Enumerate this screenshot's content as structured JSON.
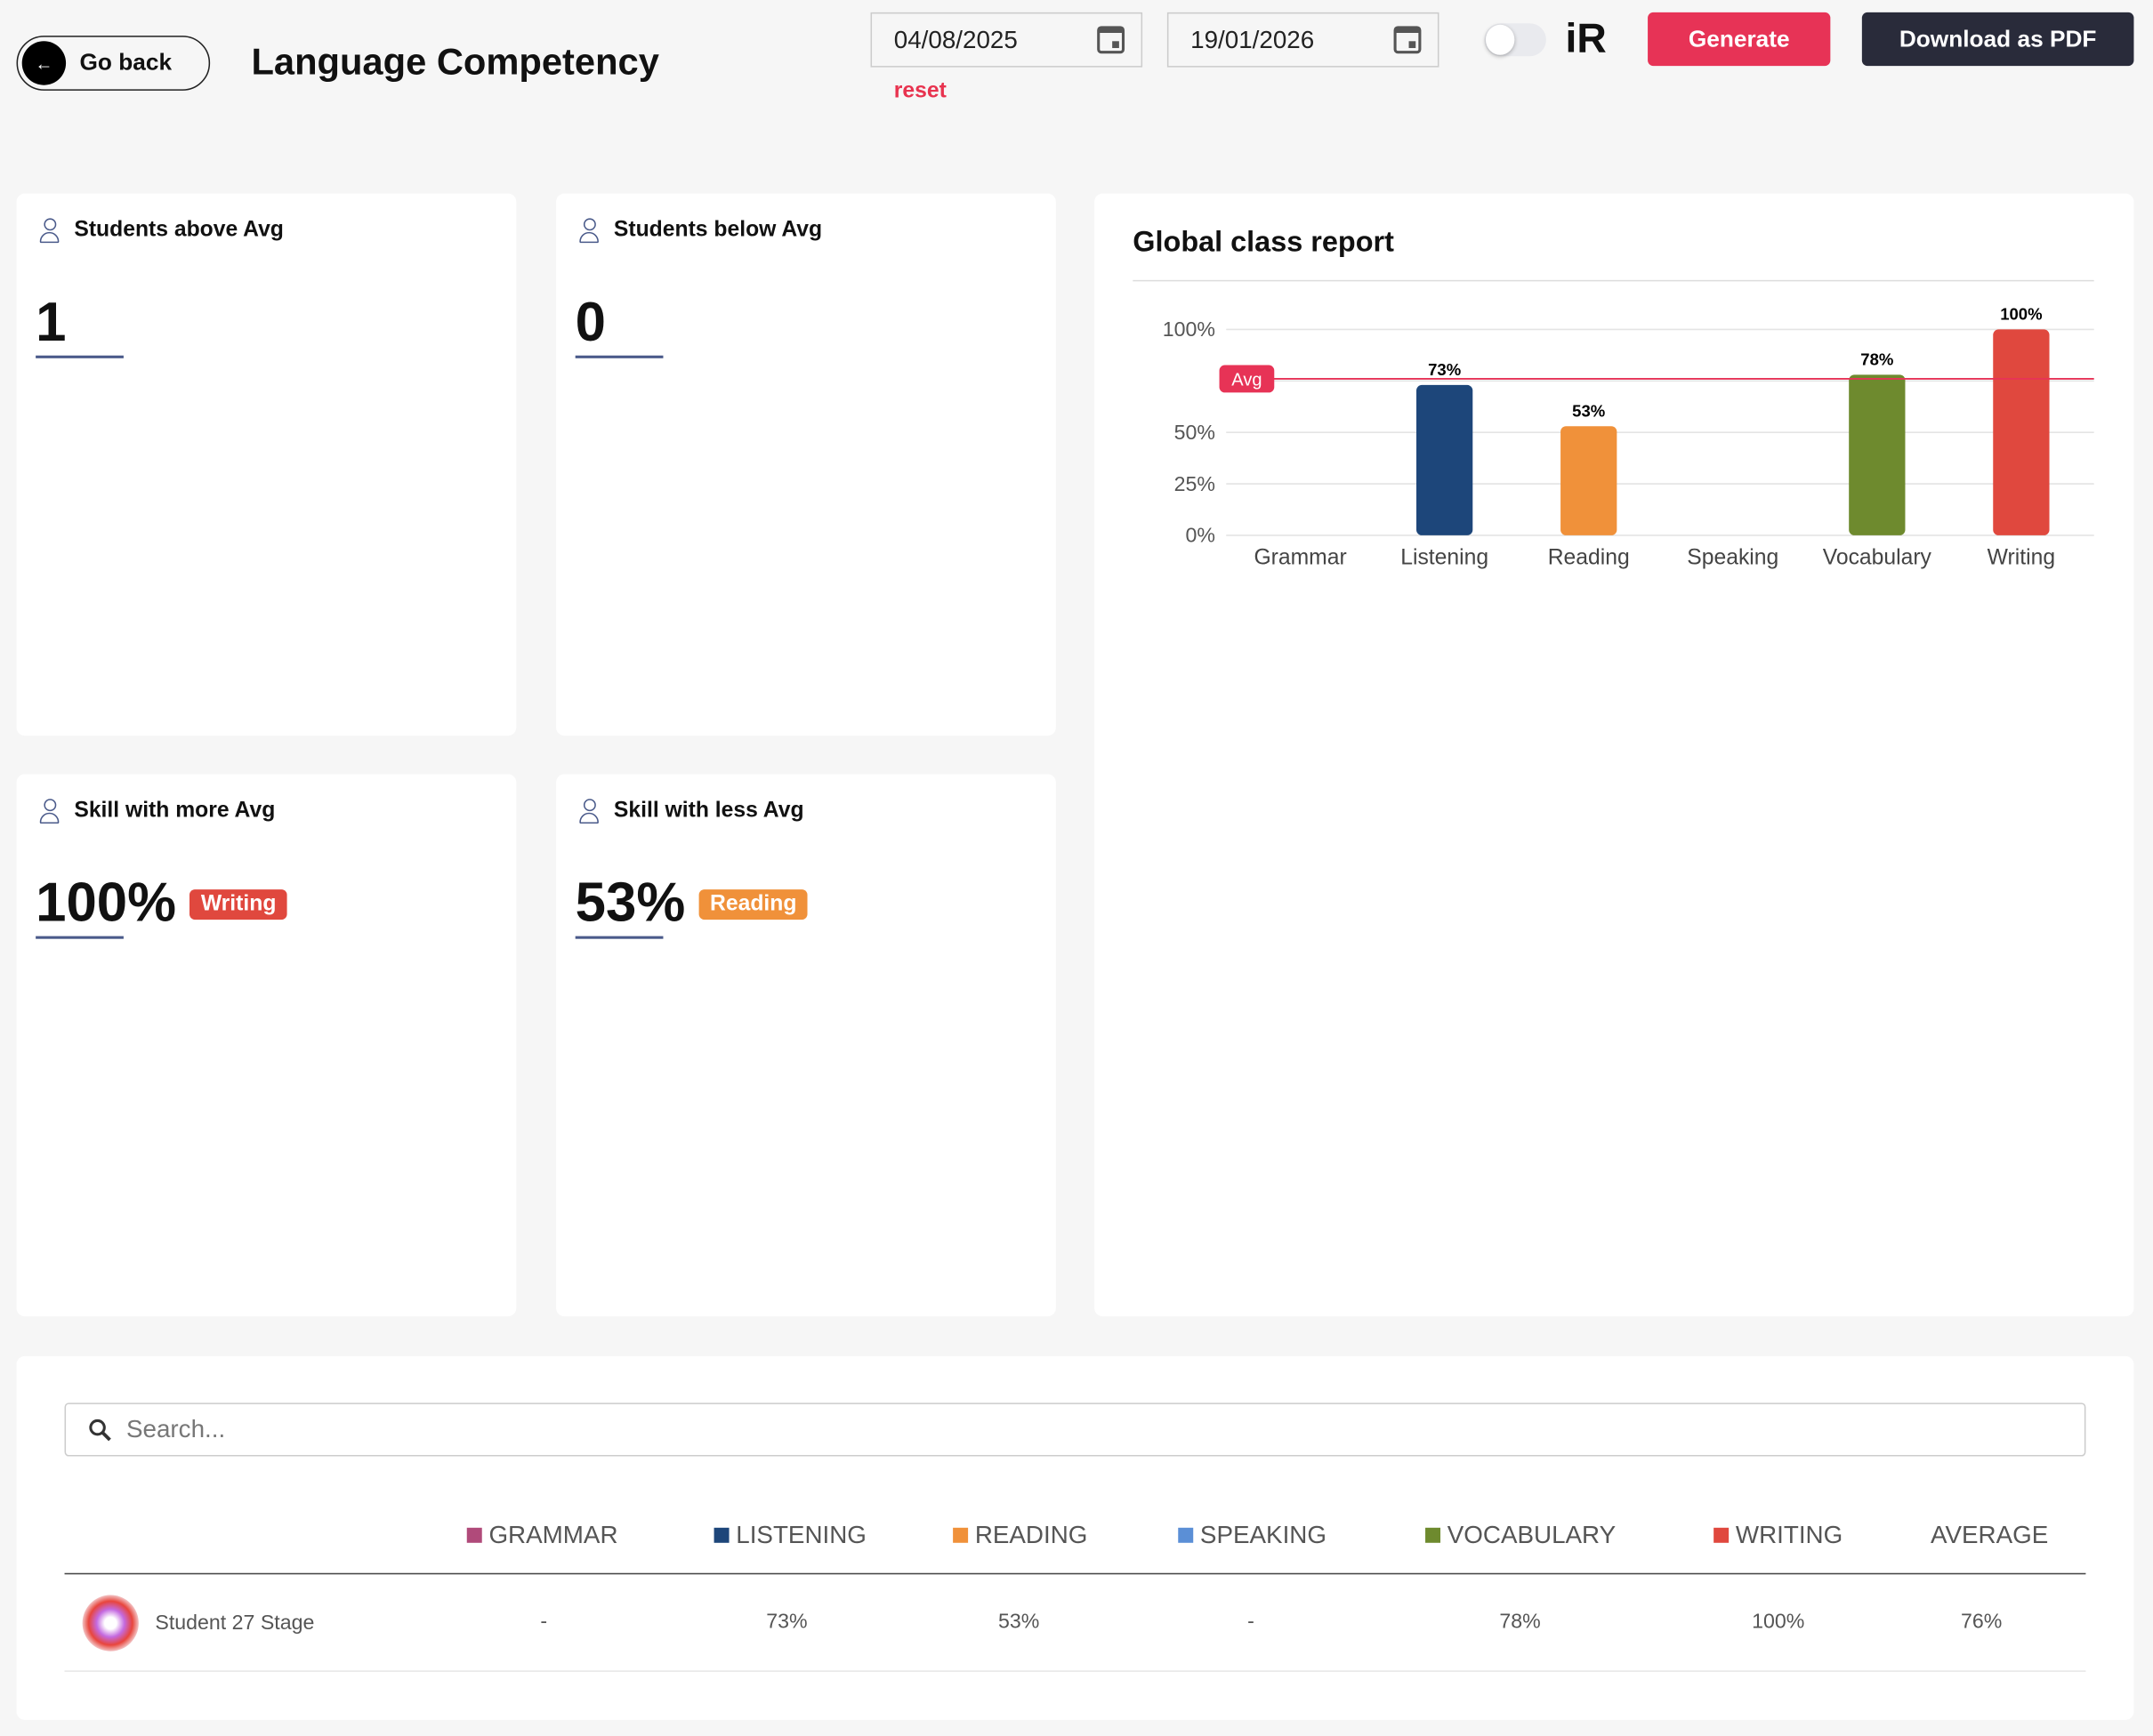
{
  "header": {
    "go_back": "Go back",
    "title": "Language Competency",
    "date_from": "04/08/2025",
    "date_to": "19/01/2026",
    "reset": "reset",
    "logo": "iR",
    "generate": "Generate",
    "download": "Download as PDF",
    "toggle_on": false
  },
  "cards": [
    {
      "title": "Students above Avg",
      "value": "1"
    },
    {
      "title": "Students below Avg",
      "value": "0"
    },
    {
      "title": "Skill with more Avg",
      "value": "100%",
      "badge": "Writing",
      "badge_color": "#e0483e"
    },
    {
      "title": "Skill with less Avg",
      "value": "53%",
      "badge": "Reading",
      "badge_color": "#f0913a"
    }
  ],
  "chart_data": {
    "type": "bar",
    "title": "Global class report",
    "categories": [
      "Grammar",
      "Listening",
      "Reading",
      "Speaking",
      "Vocabulary",
      "Writing"
    ],
    "values": [
      null,
      73,
      53,
      null,
      78,
      100
    ],
    "labels": [
      "",
      "73%",
      "53%",
      "",
      "78%",
      "100%"
    ],
    "colors": [
      "#b04a7a",
      "#1d467a",
      "#f0913a",
      "#5b8fd6",
      "#6e8a2e",
      "#e0483e"
    ],
    "yticks": [
      "100%",
      "50%",
      "25%",
      "0%"
    ],
    "ytick_values": [
      100,
      50,
      25,
      0
    ],
    "ylim": [
      0,
      100
    ],
    "avg": 76,
    "avg_label": "Avg",
    "grid": true
  },
  "table": {
    "search_placeholder": "Search...",
    "columns": [
      {
        "label": "GRAMMAR",
        "color": "#b04a7a"
      },
      {
        "label": "LISTENING",
        "color": "#1d467a"
      },
      {
        "label": "READING",
        "color": "#f0913a"
      },
      {
        "label": "SPEAKING",
        "color": "#5b8fd6"
      },
      {
        "label": "VOCABULARY",
        "color": "#6e8a2e"
      },
      {
        "label": "WRITING",
        "color": "#e0483e"
      },
      {
        "label": "AVERAGE",
        "color": null
      }
    ],
    "rows": [
      {
        "name": "Student 27 Stage",
        "values": [
          "-",
          "73%",
          "53%",
          "-",
          "78%",
          "100%",
          "76%"
        ]
      }
    ]
  }
}
